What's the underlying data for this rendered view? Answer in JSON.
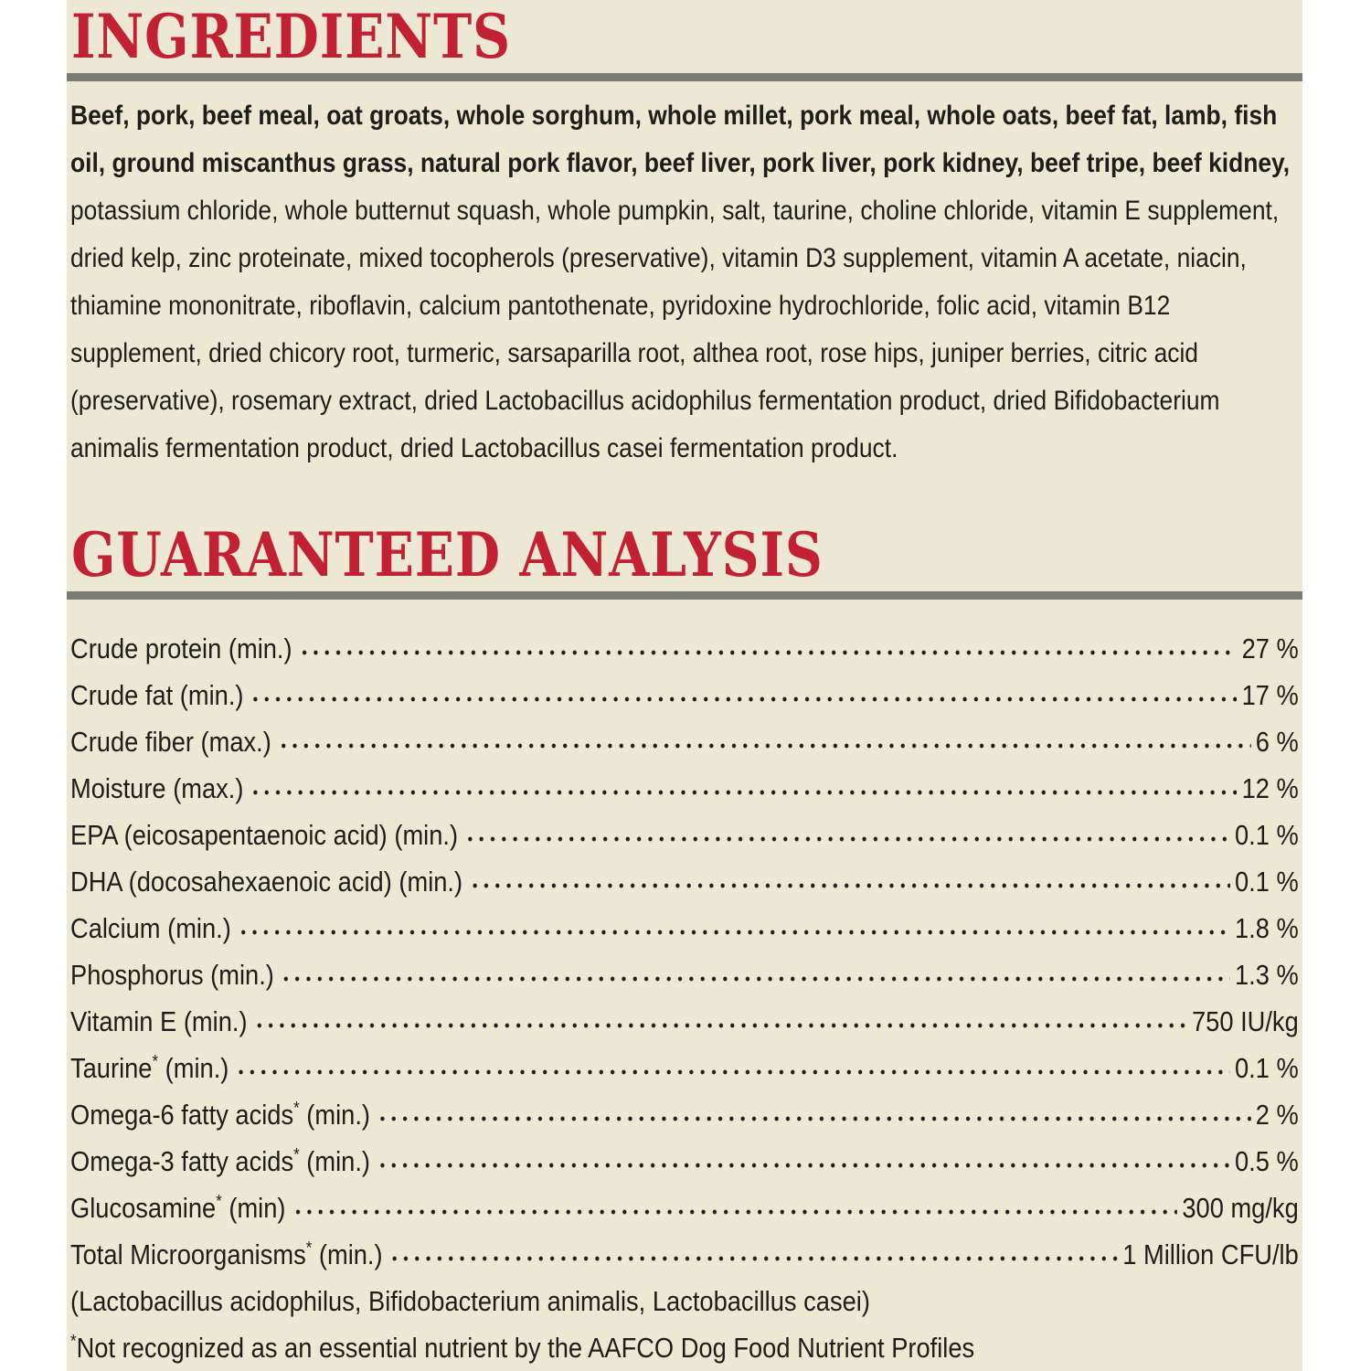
{
  "page": {
    "panel_background": "#EDE8D4",
    "accent_red": "#C22033",
    "rule_gray": "#7B7B75",
    "text_color": "#1D1D1B"
  },
  "ingredients": {
    "title": "INGREDIENTS",
    "text_bold": "Beef, pork, beef meal, oat groats, whole sorghum, whole millet, pork meal, whole oats, beef fat, lamb, fish oil, ground miscanthus grass, natural pork flavor, beef liver, pork liver, pork kidney, beef tripe, beef kidney,",
    "text_regular": " potassium chloride, whole butternut squash, whole pumpkin, salt, taurine, choline chloride, vitamin E supplement, dried kelp, zinc proteinate, mixed tocopherols (preservative), vitamin D3 supplement, vitamin A acetate, niacin, thiamine mononitrate, riboflavin, calcium pantothenate, pyridoxine hydrochloride, folic acid, vitamin B12 supplement, dried chicory root, turmeric, sarsaparilla root, althea root, rose hips, juniper berries, citric acid (preservative), rosemary extract, dried Lactobacillus acidophilus fermentation product, dried Bifidobacterium animalis fermentation product, dried Lactobacillus casei fermentation product."
  },
  "analysis": {
    "title": "GUARANTEED ANALYSIS",
    "rows": [
      {
        "label": "Crude protein",
        "sup": "",
        "suffix": " (min.)",
        "value": "27 %"
      },
      {
        "label": "Crude fat",
        "sup": "",
        "suffix": " (min.)",
        "value": "17 %"
      },
      {
        "label": "Crude fiber",
        "sup": "",
        "suffix": " (max.)",
        "value": "6 %"
      },
      {
        "label": "Moisture",
        "sup": "",
        "suffix": " (max.)",
        "value": "12 %"
      },
      {
        "label": "EPA (eicosapentaenoic acid)",
        "sup": "",
        "suffix": " (min.)",
        "value": "0.1 %"
      },
      {
        "label": "DHA (docosahexaenoic acid)",
        "sup": "",
        "suffix": " (min.)",
        "value": "0.1 %"
      },
      {
        "label": "Calcium",
        "sup": "",
        "suffix": " (min.)",
        "value": "1.8 %"
      },
      {
        "label": "Phosphorus",
        "sup": "",
        "suffix": " (min.)",
        "value": "1.3 %"
      },
      {
        "label": "Vitamin E",
        "sup": "",
        "suffix": " (min.)",
        "value": "750 IU/kg"
      },
      {
        "label": "Taurine",
        "sup": "*",
        "suffix": " (min.)",
        "value": "0.1 %"
      },
      {
        "label": "Omega-6 fatty acids",
        "sup": "*",
        "suffix": " (min.)",
        "value": "2 %"
      },
      {
        "label": "Omega-3 fatty acids",
        "sup": "*",
        "suffix": " (min.)",
        "value": "0.5 %"
      },
      {
        "label": "Glucosamine",
        "sup": "*",
        "suffix": " (min)",
        "value": "300 mg/kg"
      },
      {
        "label": "Total Microorganisms",
        "sup": "*",
        "suffix": " (min.)",
        "value": "1 Million CFU/lb"
      }
    ],
    "microorganisms_note": "(Lactobacillus acidophilus, Bifidobacterium animalis, Lactobacillus casei)",
    "footnote_sup": "*",
    "footnote": "Not recognized as an essential nutrient by the AAFCO Dog Food Nutrient Profiles"
  }
}
